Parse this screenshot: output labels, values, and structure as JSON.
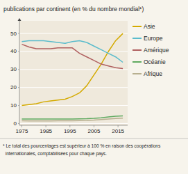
{
  "chart_data": {
    "type": "line",
    "title": "publications par continent (en % du nombre mondial*)",
    "annotations": [
      "* Le total des pourcentages est supérieur à 100 % en raison des coopérations",
      "  internationales, comptabilisées pour chaque pays."
    ],
    "x": [
      1975,
      1978,
      1981,
      1984,
      1987,
      1990,
      1993,
      1996,
      1999,
      2002,
      2005,
      2008,
      2011,
      2014,
      2017
    ],
    "series": [
      {
        "name": "Asie",
        "color": "#d4aa00",
        "values": [
          10,
          10.5,
          11,
          12,
          12.5,
          13,
          13.5,
          15,
          17,
          21,
          27,
          33,
          40,
          46,
          50
        ]
      },
      {
        "name": "Europe",
        "color": "#5bbccc",
        "values": [
          45.5,
          46,
          46,
          46,
          45.5,
          45,
          44.5,
          45.5,
          46,
          45,
          43,
          41,
          39,
          37,
          34
        ]
      },
      {
        "name": "Amérique",
        "color": "#b06060",
        "values": [
          44,
          42.5,
          41.5,
          41.5,
          41.5,
          42,
          42,
          42,
          39,
          37,
          35,
          33,
          32,
          31,
          30.5
        ]
      },
      {
        "name": "Océanie",
        "color": "#60aa60",
        "values": [
          2.5,
          2.5,
          2.5,
          2.5,
          2.5,
          2.5,
          2.5,
          2.5,
          2.6,
          2.7,
          2.9,
          3.2,
          3.6,
          4.0,
          4.2
        ]
      },
      {
        "name": "Afrique",
        "color": "#b8b090",
        "values": [
          1.5,
          1.4,
          1.4,
          1.4,
          1.4,
          1.5,
          1.5,
          1.5,
          1.6,
          1.7,
          1.9,
          2.2,
          2.5,
          2.8,
          3.0
        ]
      }
    ],
    "xlim": [
      1974,
      2019
    ],
    "ylim": [
      -1,
      57
    ],
    "xticks": [
      1975,
      1985,
      1995,
      2005,
      2015
    ],
    "yticks": [
      0,
      10,
      20,
      30,
      40,
      50
    ],
    "grid": true,
    "legend": "right"
  }
}
